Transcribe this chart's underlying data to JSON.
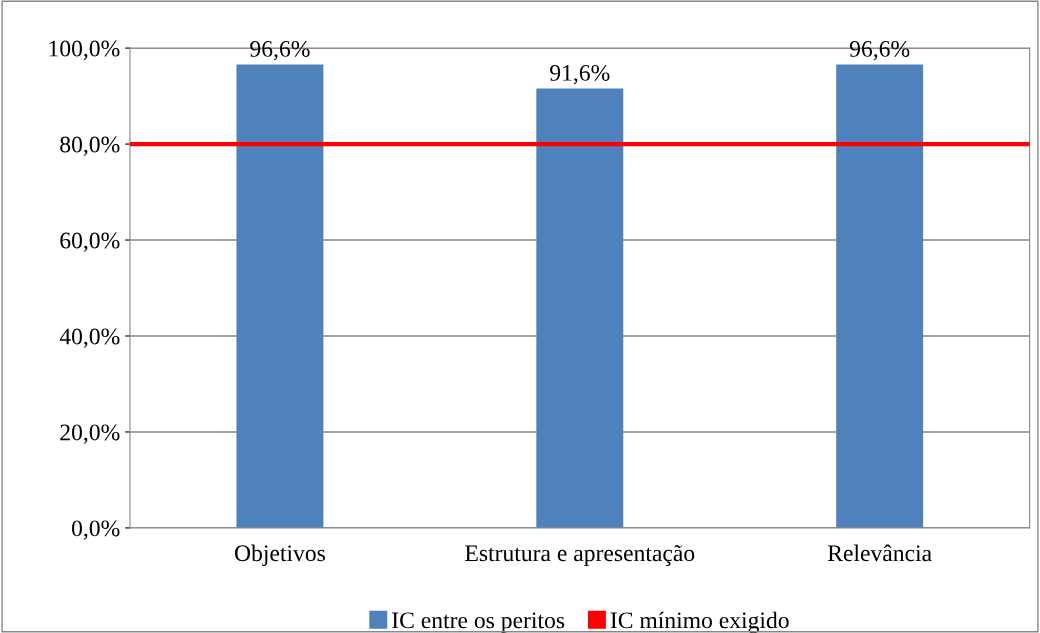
{
  "chart_data": {
    "type": "bar",
    "categories": [
      "Objetivos",
      "Estrutura e apresentação",
      "Relevância"
    ],
    "series": [
      {
        "name": "IC entre os peritos",
        "color": "#4f81bd",
        "values": [
          96.6,
          91.6,
          96.6
        ],
        "value_labels": [
          "96,6%",
          "91,6%",
          "96,6%"
        ]
      }
    ],
    "ref_lines": [
      {
        "axis": "y",
        "value": 80,
        "label": "IC mínimo exigido",
        "color": "#ff0000",
        "line_style": "solid"
      }
    ],
    "ylim": [
      0,
      100
    ],
    "yticks": [
      {
        "value": 0,
        "label": "0,0%"
      },
      {
        "value": 20,
        "label": "20,0%"
      },
      {
        "value": 40,
        "label": "40,0%"
      },
      {
        "value": 60,
        "label": "60,0%"
      },
      {
        "value": 80,
        "label": "80,0%"
      },
      {
        "value": 100,
        "label": "100,0%"
      }
    ],
    "grid": "y",
    "legend": "bottom"
  }
}
